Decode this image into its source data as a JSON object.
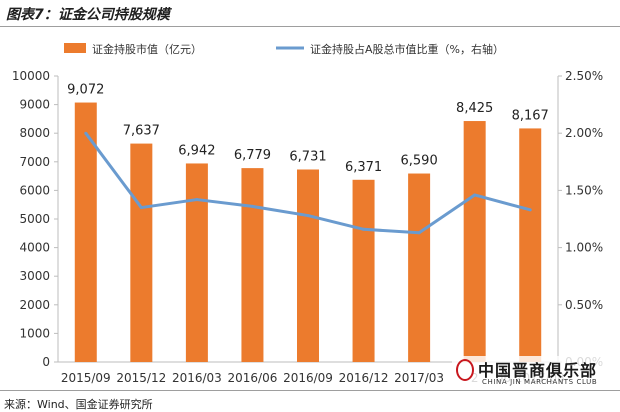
{
  "title": "图表7：证金公司持股规模",
  "source": "来源：Wind、国金证券研究所",
  "watermark": {
    "cn": "中国晋商俱乐部",
    "en": "CHINA JIN MARCHANTS CLUB"
  },
  "colors": {
    "bar": "#ec7b2d",
    "line": "#6a9bcf",
    "axis": "#bdbdbd",
    "text": "#333333"
  },
  "chart_data": {
    "type": "bar",
    "categories": [
      "2015/09",
      "2015/12",
      "2016/03",
      "2016/06",
      "2016/09",
      "2016/12",
      "2017/03",
      "2017/06",
      "2017/08"
    ],
    "category_labels_visible": [
      "2015/09",
      "2015/12",
      "2016/03",
      "2016/06",
      "2016/09",
      "2016/12",
      "2017/03",
      "2",
      "06 2017/08"
    ],
    "series": [
      {
        "name": "证金持股市值（亿元）",
        "type": "bar",
        "axis": "left",
        "values": [
          9072,
          7637,
          6942,
          6779,
          6731,
          6371,
          6590,
          8425,
          8167
        ],
        "labels": [
          "9,072",
          "7,637",
          "6,942",
          "6,779",
          "6,731",
          "6,371",
          "6,590",
          "8,425",
          "8,167"
        ]
      },
      {
        "name": "证金持股占A股总市值比重（%，右轴）",
        "type": "line",
        "axis": "right",
        "values": [
          2.0,
          1.35,
          1.42,
          1.36,
          1.28,
          1.16,
          1.13,
          1.46,
          1.33
        ]
      }
    ],
    "y_left": {
      "min": 0,
      "max": 10000,
      "step": 1000,
      "ticks": [
        "0",
        "1000",
        "2000",
        "3000",
        "4000",
        "5000",
        "6000",
        "7000",
        "8000",
        "9000",
        "10000"
      ]
    },
    "y_right": {
      "min": 0,
      "max": 2.5,
      "step": 0.5,
      "ticks": [
        "0.00%",
        "0.50%",
        "1.00%",
        "1.50%",
        "2.00%",
        "2.50%"
      ]
    },
    "legend_position": "top",
    "grid": false
  }
}
